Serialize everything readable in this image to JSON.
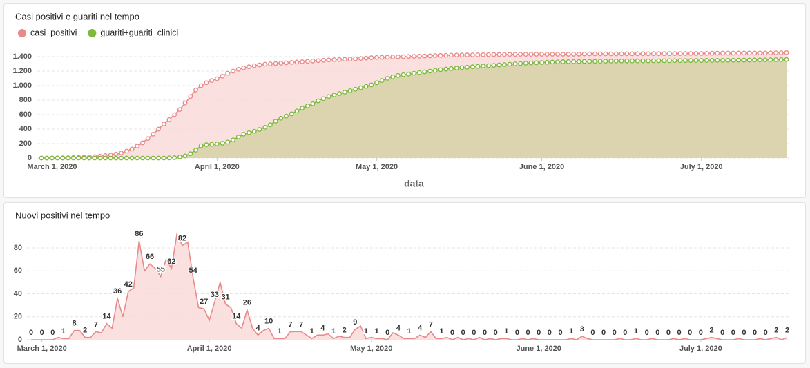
{
  "chart_data": [
    {
      "type": "area",
      "title": "Casi positivi e guariti nel tempo",
      "xlabel": "data",
      "legend": "top-left",
      "markers": true,
      "grid": true,
      "x": [
        "2020-02-28",
        "2020-02-29",
        "2020-03-01",
        "2020-03-02",
        "2020-03-03",
        "2020-03-04",
        "2020-03-05",
        "2020-03-06",
        "2020-03-07",
        "2020-03-08",
        "2020-03-09",
        "2020-03-10",
        "2020-03-11",
        "2020-03-12",
        "2020-03-13",
        "2020-03-14",
        "2020-03-15",
        "2020-03-16",
        "2020-03-17",
        "2020-03-18",
        "2020-03-19",
        "2020-03-20",
        "2020-03-21",
        "2020-03-22",
        "2020-03-23",
        "2020-03-24",
        "2020-03-25",
        "2020-03-26",
        "2020-03-27",
        "2020-03-28",
        "2020-03-29",
        "2020-03-30",
        "2020-03-31",
        "2020-04-01",
        "2020-04-02",
        "2020-04-03",
        "2020-04-04",
        "2020-04-05",
        "2020-04-06",
        "2020-04-07",
        "2020-04-08",
        "2020-04-09",
        "2020-04-10",
        "2020-04-11",
        "2020-04-12",
        "2020-04-13",
        "2020-04-14",
        "2020-04-15",
        "2020-04-16",
        "2020-04-17",
        "2020-04-18",
        "2020-04-19",
        "2020-04-20",
        "2020-04-21",
        "2020-04-22",
        "2020-04-23",
        "2020-04-24",
        "2020-04-25",
        "2020-04-26",
        "2020-04-27",
        "2020-04-28",
        "2020-04-29",
        "2020-04-30",
        "2020-05-01",
        "2020-05-02",
        "2020-05-03",
        "2020-05-04",
        "2020-05-05",
        "2020-05-06",
        "2020-05-07",
        "2020-05-08",
        "2020-05-09",
        "2020-05-10",
        "2020-05-11",
        "2020-05-12",
        "2020-05-13",
        "2020-05-14",
        "2020-05-15",
        "2020-05-16",
        "2020-05-17",
        "2020-05-18",
        "2020-05-19",
        "2020-05-20",
        "2020-05-21",
        "2020-05-22",
        "2020-05-23",
        "2020-05-24",
        "2020-05-25",
        "2020-05-26",
        "2020-05-27",
        "2020-05-28",
        "2020-05-29",
        "2020-05-30",
        "2020-05-31",
        "2020-06-01",
        "2020-06-02",
        "2020-06-03",
        "2020-06-04",
        "2020-06-05",
        "2020-06-06",
        "2020-06-07",
        "2020-06-08",
        "2020-06-09",
        "2020-06-10",
        "2020-06-11",
        "2020-06-12",
        "2020-06-13",
        "2020-06-14",
        "2020-06-15",
        "2020-06-16",
        "2020-06-17",
        "2020-06-18",
        "2020-06-19",
        "2020-06-20",
        "2020-06-21",
        "2020-06-22",
        "2020-06-23",
        "2020-06-24",
        "2020-06-25",
        "2020-06-26",
        "2020-06-27",
        "2020-06-28",
        "2020-06-29",
        "2020-06-30",
        "2020-07-01",
        "2020-07-02",
        "2020-07-03",
        "2020-07-04",
        "2020-07-05",
        "2020-07-06",
        "2020-07-07",
        "2020-07-08",
        "2020-07-09",
        "2020-07-10",
        "2020-07-11",
        "2020-07-12",
        "2020-07-13",
        "2020-07-14",
        "2020-07-15",
        "2020-07-16",
        "2020-07-17"
      ],
      "xlim": [
        "2020-02-28",
        "2020-07-17"
      ],
      "xticks": [
        {
          "value": "2020-03-01",
          "label": "March 1, 2020"
        },
        {
          "value": "2020-04-01",
          "label": "April 1, 2020"
        },
        {
          "value": "2020-05-01",
          "label": "May 1, 2020"
        },
        {
          "value": "2020-06-01",
          "label": "June 1, 2020"
        },
        {
          "value": "2020-07-01",
          "label": "July 1, 2020"
        }
      ],
      "ylim": [
        0,
        1500
      ],
      "yticks": [
        0,
        200,
        400,
        600,
        800,
        {
          "value": 1000,
          "label": "1.000"
        },
        {
          "value": 1200,
          "label": "1.200"
        },
        {
          "value": 1400,
          "label": "1.400"
        }
      ],
      "series": [
        {
          "name": "casi_positivi",
          "color": "#e88a8a",
          "area_color": "#fadadb",
          "values": [
            0,
            0,
            1,
            2,
            3,
            5,
            7,
            9,
            12,
            16,
            20,
            26,
            34,
            42,
            55,
            70,
            95,
            125,
            165,
            210,
            270,
            330,
            400,
            470,
            530,
            600,
            670,
            760,
            850,
            940,
            1000,
            1040,
            1070,
            1095,
            1130,
            1170,
            1200,
            1225,
            1245,
            1260,
            1275,
            1285,
            1295,
            1300,
            1305,
            1310,
            1315,
            1320,
            1325,
            1330,
            1335,
            1340,
            1345,
            1350,
            1355,
            1358,
            1360,
            1363,
            1366,
            1370,
            1375,
            1380,
            1385,
            1388,
            1390,
            1392,
            1395,
            1398,
            1400,
            1402,
            1404,
            1406,
            1408,
            1410,
            1414,
            1416,
            1418,
            1420,
            1421,
            1422,
            1423,
            1424,
            1425,
            1426,
            1427,
            1428,
            1429,
            1430,
            1431,
            1431,
            1432,
            1432,
            1432,
            1433,
            1433,
            1433,
            1433,
            1433,
            1433,
            1433,
            1434,
            1434,
            1437,
            1438,
            1438,
            1438,
            1438,
            1438,
            1438,
            1439,
            1439,
            1439,
            1440,
            1440,
            1440,
            1441,
            1441,
            1441,
            1441,
            1442,
            1442,
            1443,
            1443,
            1443,
            1443,
            1444,
            1446,
            1447,
            1447,
            1447,
            1447,
            1448,
            1448,
            1448,
            1448,
            1449,
            1449,
            1450,
            1452,
            1452,
            1454
          ]
        },
        {
          "name": "guariti+guariti_clinici",
          "color": "#7cba3d",
          "area_color": "#d6d1a6",
          "values": [
            0,
            0,
            0,
            0,
            0,
            0,
            0,
            0,
            0,
            0,
            0,
            0,
            0,
            0,
            0,
            0,
            0,
            0,
            0,
            0,
            0,
            0,
            0,
            0,
            2,
            5,
            15,
            30,
            60,
            110,
            170,
            185,
            190,
            195,
            205,
            220,
            250,
            290,
            330,
            350,
            370,
            395,
            425,
            460,
            510,
            550,
            580,
            610,
            650,
            690,
            720,
            750,
            790,
            820,
            850,
            870,
            890,
            910,
            930,
            950,
            970,
            990,
            1010,
            1040,
            1070,
            1100,
            1120,
            1140,
            1150,
            1160,
            1170,
            1180,
            1190,
            1200,
            1210,
            1220,
            1228,
            1235,
            1242,
            1248,
            1254,
            1260,
            1265,
            1270,
            1275,
            1280,
            1285,
            1290,
            1295,
            1300,
            1305,
            1310,
            1313,
            1316,
            1319,
            1322,
            1325,
            1327,
            1329,
            1330,
            1331,
            1332,
            1333,
            1334,
            1335,
            1336,
            1337,
            1338,
            1339,
            1340,
            1340,
            1341,
            1341,
            1342,
            1342,
            1343,
            1343,
            1344,
            1344,
            1345,
            1345,
            1346,
            1346,
            1347,
            1347,
            1348,
            1348,
            1349,
            1349,
            1350,
            1350,
            1351,
            1352,
            1353,
            1354,
            1355,
            1356,
            1357,
            1358,
            1359,
            1360
          ]
        }
      ]
    },
    {
      "type": "area",
      "title": "Nuovi positivi nel tempo",
      "data_labels": true,
      "grid": true,
      "x": [
        "2020-02-28",
        "2020-02-29",
        "2020-03-01",
        "2020-03-02",
        "2020-03-03",
        "2020-03-04",
        "2020-03-05",
        "2020-03-06",
        "2020-03-07",
        "2020-03-08",
        "2020-03-09",
        "2020-03-10",
        "2020-03-11",
        "2020-03-12",
        "2020-03-13",
        "2020-03-14",
        "2020-03-15",
        "2020-03-16",
        "2020-03-17",
        "2020-03-18",
        "2020-03-19",
        "2020-03-20",
        "2020-03-21",
        "2020-03-22",
        "2020-03-23",
        "2020-03-24",
        "2020-03-25",
        "2020-03-26",
        "2020-03-27",
        "2020-03-28",
        "2020-03-29",
        "2020-03-30",
        "2020-03-31",
        "2020-04-01",
        "2020-04-02",
        "2020-04-03",
        "2020-04-04",
        "2020-04-05",
        "2020-04-06",
        "2020-04-07",
        "2020-04-08",
        "2020-04-09",
        "2020-04-10",
        "2020-04-11",
        "2020-04-12",
        "2020-04-13",
        "2020-04-14",
        "2020-04-15",
        "2020-04-16",
        "2020-04-17",
        "2020-04-18",
        "2020-04-19",
        "2020-04-20",
        "2020-04-21",
        "2020-04-22",
        "2020-04-23",
        "2020-04-24",
        "2020-04-25",
        "2020-04-26",
        "2020-04-27",
        "2020-04-28",
        "2020-04-29",
        "2020-04-30",
        "2020-05-01",
        "2020-05-02",
        "2020-05-03",
        "2020-05-04",
        "2020-05-05",
        "2020-05-06",
        "2020-05-07",
        "2020-05-08",
        "2020-05-09",
        "2020-05-10",
        "2020-05-11",
        "2020-05-12",
        "2020-05-13",
        "2020-05-14",
        "2020-05-15",
        "2020-05-16",
        "2020-05-17",
        "2020-05-18",
        "2020-05-19",
        "2020-05-20",
        "2020-05-21",
        "2020-05-22",
        "2020-05-23",
        "2020-05-24",
        "2020-05-25",
        "2020-05-26",
        "2020-05-27",
        "2020-05-28",
        "2020-05-29",
        "2020-05-30",
        "2020-05-31",
        "2020-06-01",
        "2020-06-02",
        "2020-06-03",
        "2020-06-04",
        "2020-06-05",
        "2020-06-06",
        "2020-06-07",
        "2020-06-08",
        "2020-06-09",
        "2020-06-10",
        "2020-06-11",
        "2020-06-12",
        "2020-06-13",
        "2020-06-14",
        "2020-06-15",
        "2020-06-16",
        "2020-06-17",
        "2020-06-18",
        "2020-06-19",
        "2020-06-20",
        "2020-06-21",
        "2020-06-22",
        "2020-06-23",
        "2020-06-24",
        "2020-06-25",
        "2020-06-26",
        "2020-06-27",
        "2020-06-28",
        "2020-06-29",
        "2020-06-30",
        "2020-07-01",
        "2020-07-02",
        "2020-07-03",
        "2020-07-04",
        "2020-07-05",
        "2020-07-06",
        "2020-07-07",
        "2020-07-08",
        "2020-07-09",
        "2020-07-10",
        "2020-07-11",
        "2020-07-12",
        "2020-07-13",
        "2020-07-14",
        "2020-07-15",
        "2020-07-16",
        "2020-07-17"
      ],
      "xlim": [
        "2020-02-28",
        "2020-07-17"
      ],
      "xticks": [
        {
          "value": "2020-03-01",
          "label": "March 1, 2020"
        },
        {
          "value": "2020-04-01",
          "label": "April 1, 2020"
        },
        {
          "value": "2020-05-01",
          "label": "May 1, 2020"
        },
        {
          "value": "2020-06-01",
          "label": "June 1, 2020"
        },
        {
          "value": "2020-07-01",
          "label": "July 1, 2020"
        }
      ],
      "ylim": [
        0,
        100
      ],
      "yticks": [
        0,
        20,
        40,
        60,
        80
      ],
      "series": [
        {
          "name": "nuovi_positivi",
          "color": "#e88a8a",
          "area_color": "#fadadb",
          "values": [
            0,
            0,
            0,
            0,
            0,
            2,
            1,
            1,
            8,
            8,
            2,
            2,
            7,
            6,
            14,
            10,
            36,
            20,
            42,
            45,
            86,
            60,
            66,
            62,
            55,
            70,
            62,
            92,
            82,
            85,
            54,
            28,
            27,
            17,
            33,
            50,
            31,
            28,
            14,
            10,
            26,
            10,
            4,
            8,
            10,
            1,
            1,
            1,
            7,
            7,
            7,
            4,
            1,
            4,
            4,
            5,
            1,
            3,
            2,
            2,
            9,
            12,
            1,
            2,
            1,
            1,
            0,
            6,
            4,
            1,
            1,
            1,
            4,
            2,
            7,
            1,
            1,
            2,
            0,
            2,
            0,
            1,
            0,
            2,
            0,
            1,
            0,
            1,
            1,
            0,
            0,
            1,
            0,
            1,
            0,
            0,
            0,
            0,
            0,
            0,
            1,
            0,
            3,
            1,
            0,
            0,
            0,
            0,
            0,
            1,
            0,
            0,
            1,
            0,
            0,
            1,
            0,
            0,
            0,
            1,
            0,
            1,
            0,
            0,
            0,
            1,
            2,
            1,
            0,
            0,
            0,
            1,
            0,
            0,
            0,
            1,
            0,
            1,
            2,
            0,
            2
          ]
        }
      ]
    }
  ]
}
